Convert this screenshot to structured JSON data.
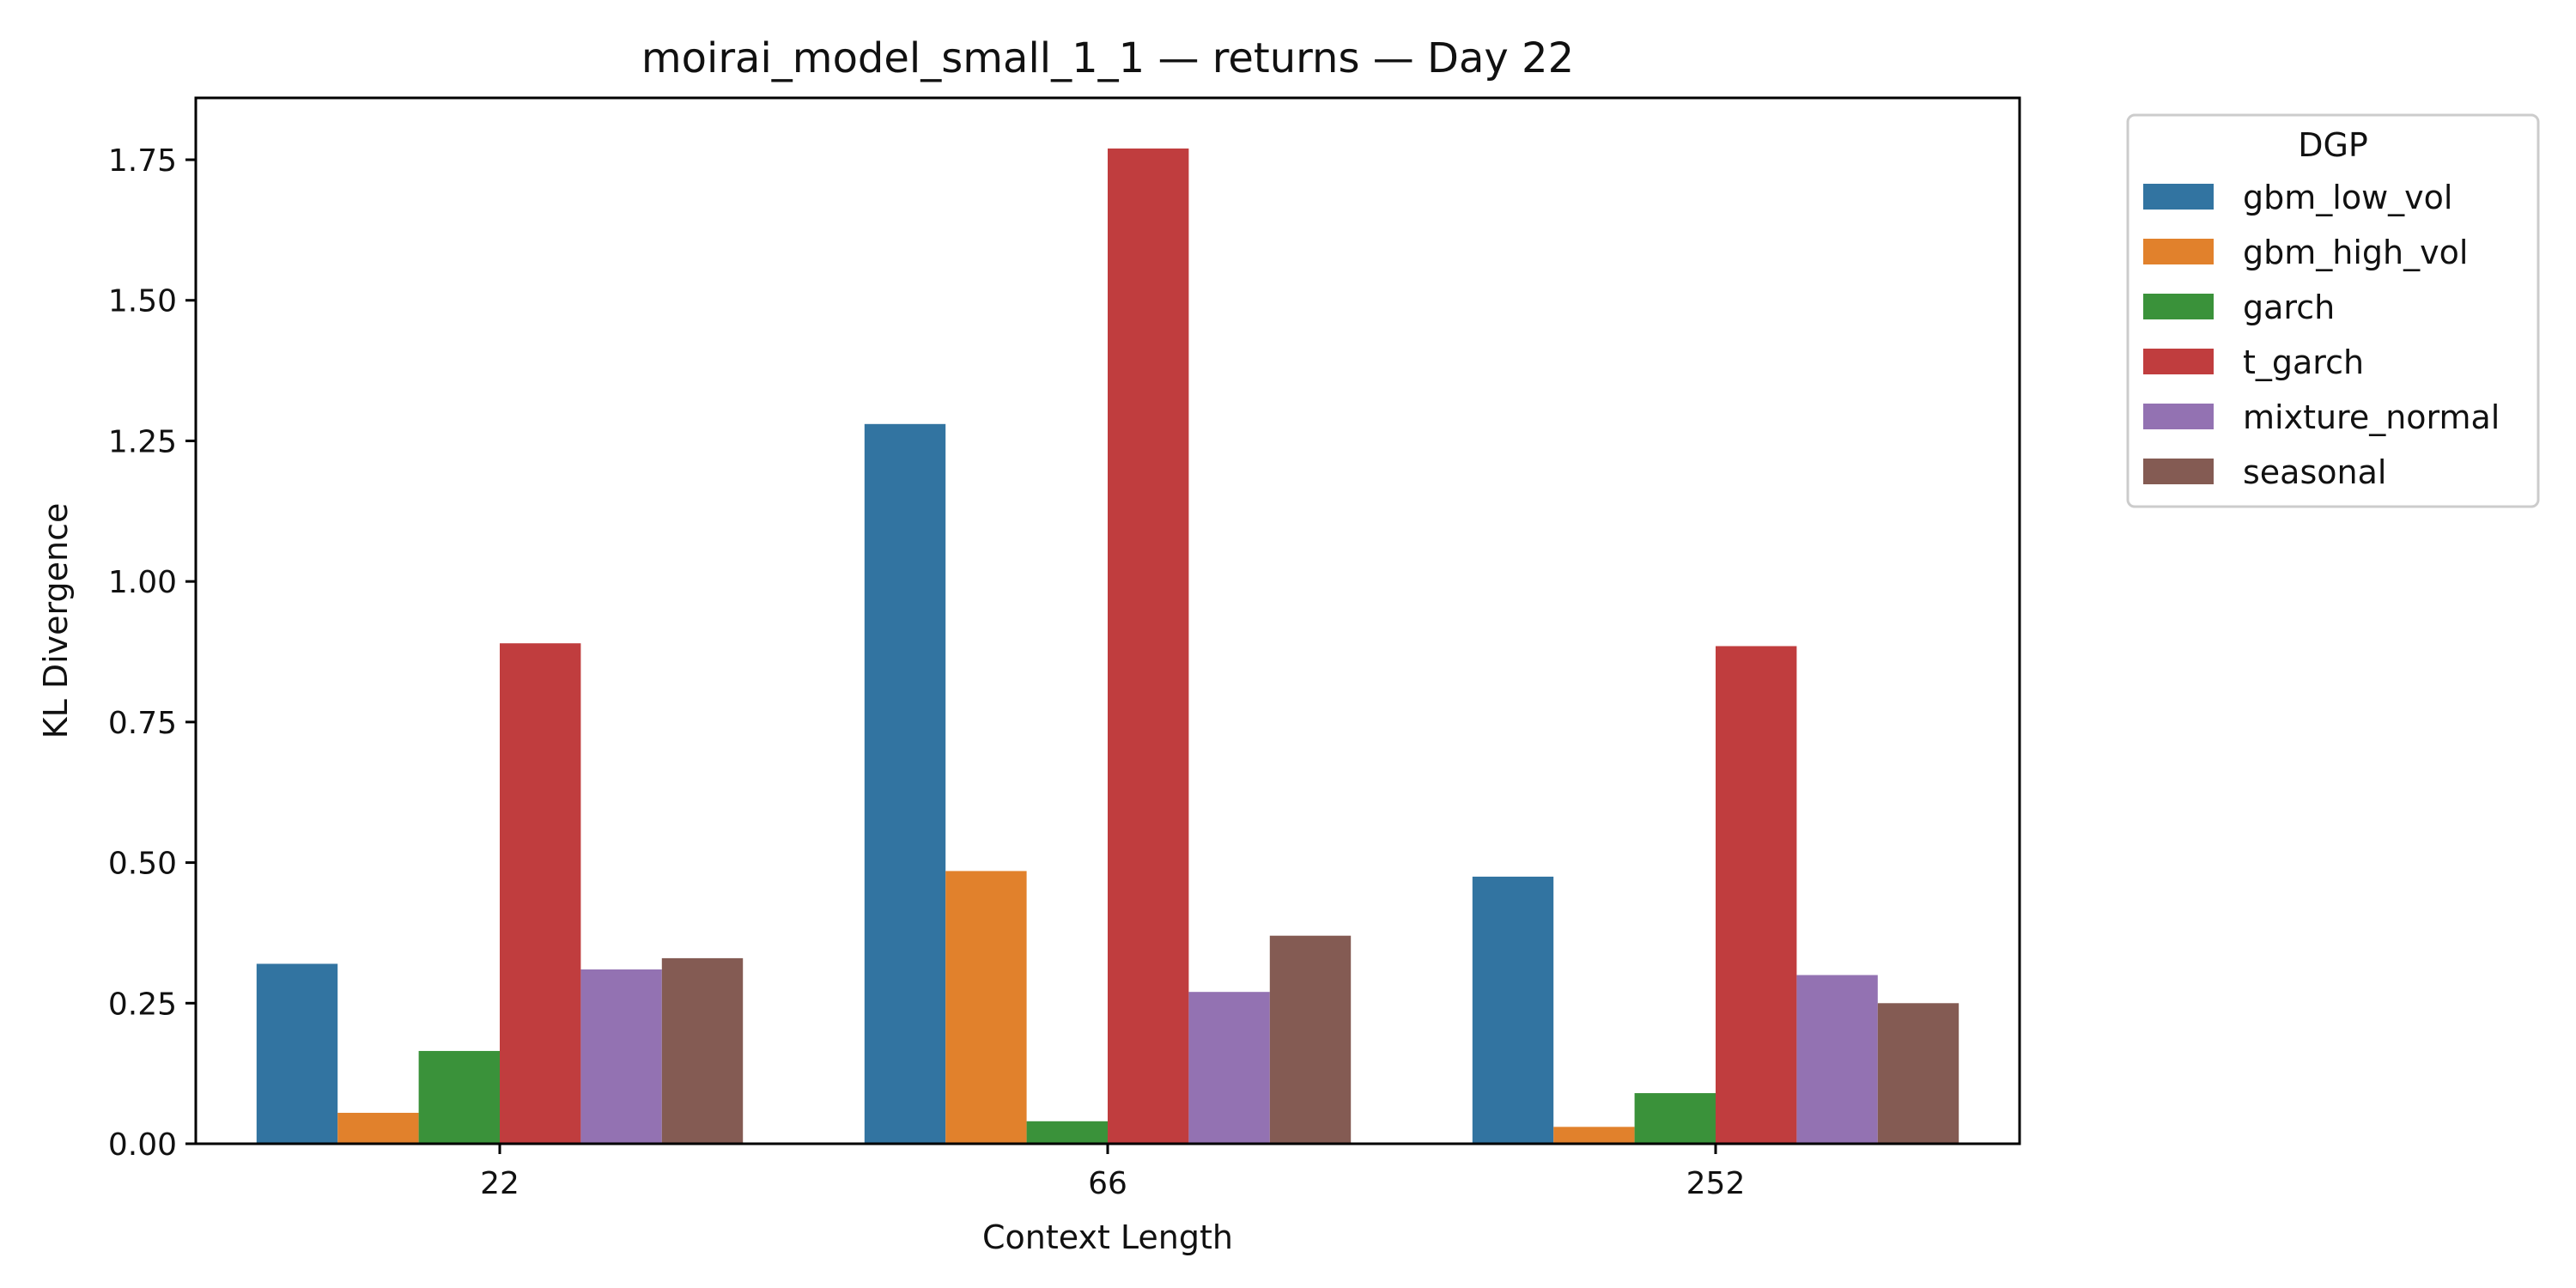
{
  "chart_data": {
    "type": "bar",
    "title": "moirai_model_small_1_1 — returns — Day 22",
    "xlabel": "Context Length",
    "ylabel": "KL Divergence",
    "categories": [
      "22",
      "66",
      "252"
    ],
    "ylim": [
      0,
      1.86
    ],
    "yticks": [
      "0.00",
      "0.25",
      "0.50",
      "0.75",
      "1.00",
      "1.25",
      "1.50",
      "1.75"
    ],
    "legend_title": "DGP",
    "legend_position": "outside-top-right",
    "grid": false,
    "series": [
      {
        "name": "gbm_low_vol",
        "color": "#3274a1",
        "values": [
          0.32,
          1.28,
          0.475
        ]
      },
      {
        "name": "gbm_high_vol",
        "color": "#e1812c",
        "values": [
          0.055,
          0.485,
          0.03
        ]
      },
      {
        "name": "garch",
        "color": "#3a923a",
        "values": [
          0.165,
          0.04,
          0.09
        ]
      },
      {
        "name": "t_garch",
        "color": "#c03d3e",
        "values": [
          0.89,
          1.77,
          0.885
        ]
      },
      {
        "name": "mixture_normal",
        "color": "#9372b2",
        "values": [
          0.31,
          0.27,
          0.3
        ]
      },
      {
        "name": "seasonal",
        "color": "#845b53",
        "values": [
          0.33,
          0.37,
          0.25
        ]
      }
    ]
  }
}
